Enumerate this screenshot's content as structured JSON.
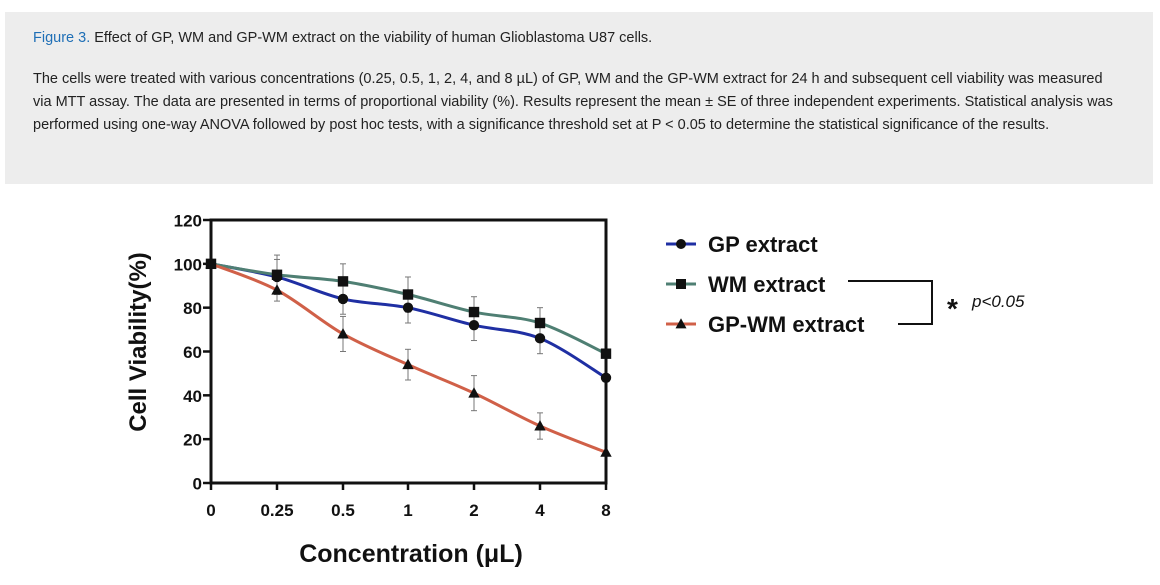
{
  "caption": {
    "label": "Figure 3.",
    "title": "Effect of GP, WM and GP-WM extract on the viability of human Glioblastoma U87 cells.",
    "body": "The cells were treated with various concentrations (0.25, 0.5, 1, 2, 4, and 8 µL) of GP, WM and the GP-WM extract for 24 h and subsequent cell viability was measured via MTT assay. The data are presented in terms of proportional viability (%). Results represent the mean ± SE of three independent experiments. Statistical analysis was performed using one-way ANOVA followed by post hoc tests, with a significance threshold set at P < 0.05 to determine the statistical significance of the results."
  },
  "chart_data": {
    "type": "line",
    "title": "",
    "xlabel": "Concentration (μL)",
    "ylabel": "Cell Viability(%)",
    "x_ticks": [
      "0",
      "0.25",
      "0.5",
      "1",
      "2",
      "4",
      "8"
    ],
    "y_ticks": [
      0,
      20,
      40,
      60,
      80,
      100,
      120
    ],
    "ylim": [
      0,
      120
    ],
    "grid": false,
    "legend_position": "right",
    "series": [
      {
        "name": "GP extract",
        "marker": "circle",
        "color": "#1f2fa3",
        "values": [
          100,
          94,
          84,
          80,
          72,
          66,
          48
        ],
        "errors": [
          0,
          8,
          7,
          7,
          7,
          7,
          0
        ]
      },
      {
        "name": "WM extract",
        "marker": "square",
        "color": "#4f7f73",
        "values": [
          100,
          95,
          92,
          86,
          78,
          73,
          59
        ],
        "errors": [
          0,
          9,
          8,
          8,
          7,
          7,
          0
        ]
      },
      {
        "name": "GP-WM extract",
        "marker": "triangle",
        "color": "#d06048",
        "values": [
          100,
          88,
          68,
          54,
          41,
          26,
          14
        ],
        "errors": [
          0,
          5,
          8,
          7,
          8,
          6,
          0
        ]
      }
    ],
    "significance": {
      "symbol": "*",
      "label": "p<0.05"
    }
  }
}
